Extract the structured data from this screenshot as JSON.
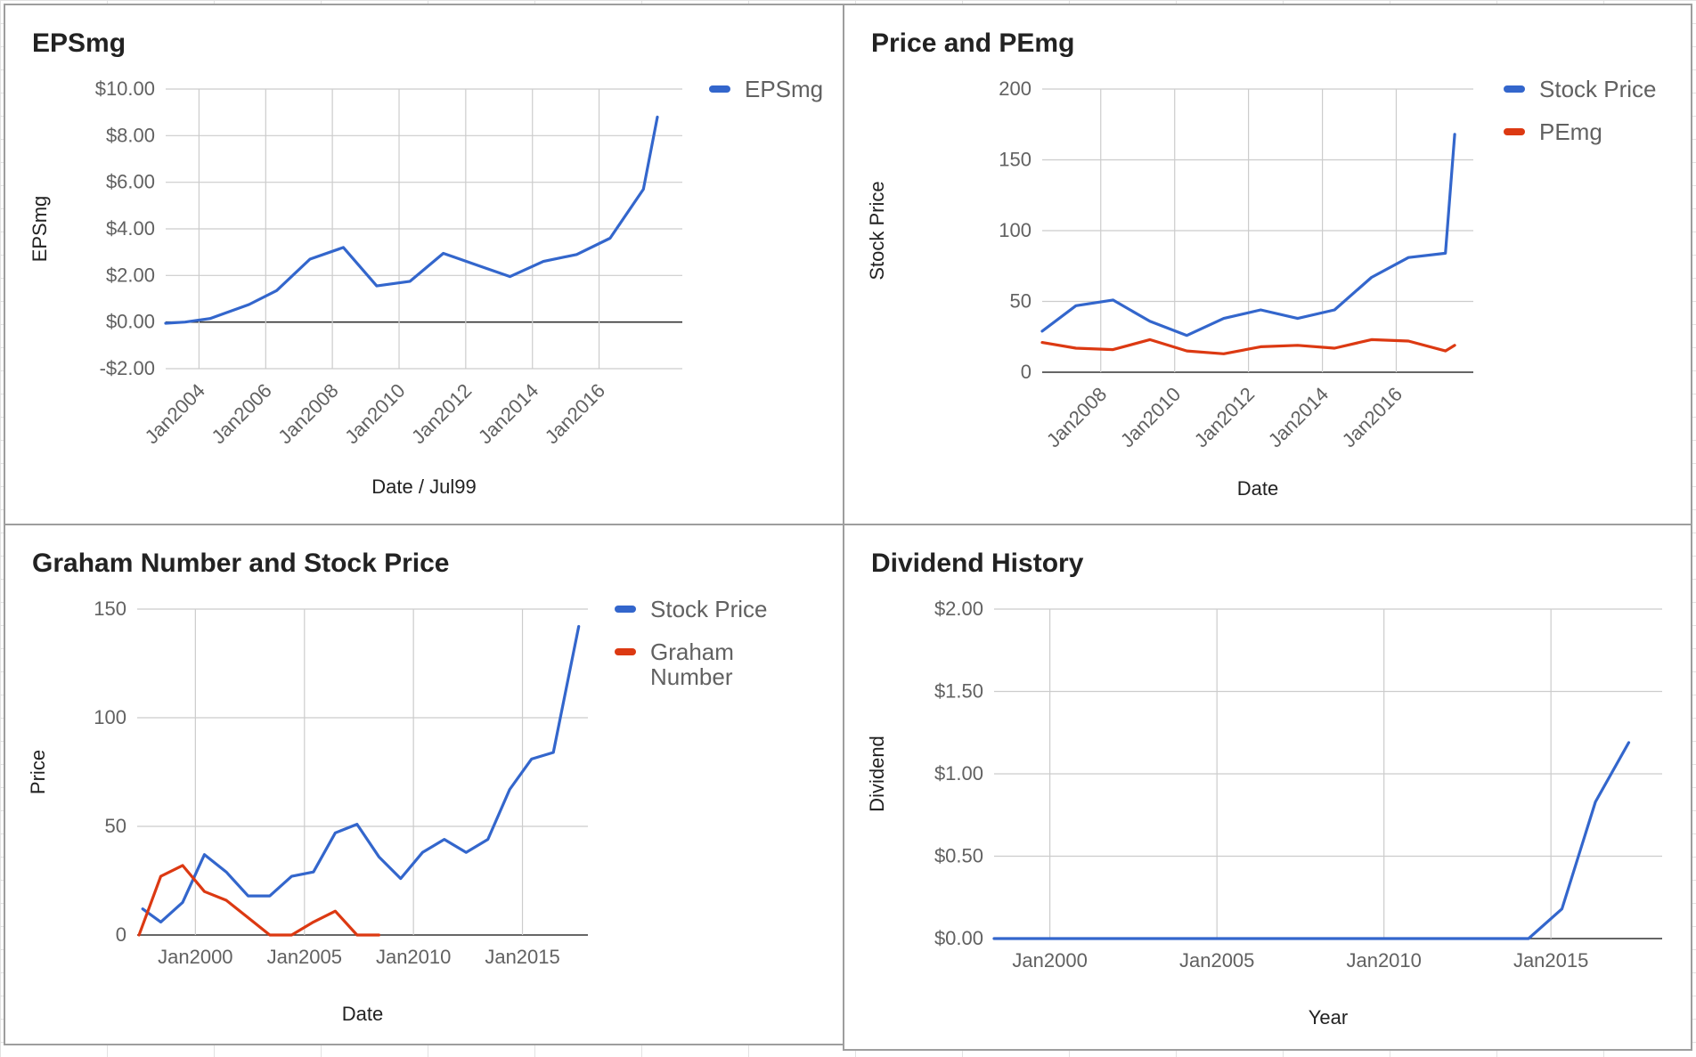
{
  "colors": {
    "blue": "#3366cc",
    "red": "#dc3912",
    "grid": "#cccccc",
    "baseline": "#333333",
    "tick_text": "#616161",
    "label_text": "#222222"
  },
  "chart_data": [
    {
      "id": "epsmg",
      "type": "line",
      "title": "EPSmg",
      "xlabel": "Date / Jul99",
      "ylabel": "EPSmg",
      "x_type": "date",
      "xlim": [
        "2003-01-01",
        "2018-07-01"
      ],
      "ylim": [
        -2,
        10
      ],
      "yticks": [
        -2,
        0,
        2,
        4,
        6,
        8,
        10
      ],
      "ytick_labels": [
        "-$2.00",
        "$0.00",
        "$2.00",
        "$4.00",
        "$6.00",
        "$8.00",
        "$10.00"
      ],
      "xticks": [
        "2004-01-01",
        "2006-01-01",
        "2008-01-01",
        "2010-01-01",
        "2012-01-01",
        "2014-01-01",
        "2016-01-01"
      ],
      "xtick_labels": [
        "Jan2004",
        "Jan2006",
        "Jan2008",
        "Jan2010",
        "Jan2012",
        "Jan2014",
        "Jan2016"
      ],
      "xtick_rotate": true,
      "grid": true,
      "legend": "right",
      "series": [
        {
          "name": "EPSmg",
          "color": "#3366cc",
          "points": [
            [
              "2003-01-01",
              -0.05
            ],
            [
              "2003-08-01",
              0.0
            ],
            [
              "2004-05-01",
              0.15
            ],
            [
              "2005-07-01",
              0.75
            ],
            [
              "2006-05-01",
              1.35
            ],
            [
              "2007-05-01",
              2.7
            ],
            [
              "2008-05-01",
              3.2
            ],
            [
              "2009-05-01",
              1.55
            ],
            [
              "2010-05-01",
              1.75
            ],
            [
              "2011-05-01",
              2.95
            ],
            [
              "2012-05-01",
              2.45
            ],
            [
              "2013-05-01",
              1.95
            ],
            [
              "2014-05-01",
              2.6
            ],
            [
              "2015-05-01",
              2.9
            ],
            [
              "2016-05-01",
              3.6
            ],
            [
              "2017-05-01",
              5.7
            ],
            [
              "2017-10-01",
              8.8
            ]
          ]
        }
      ]
    },
    {
      "id": "price-pemg",
      "type": "line",
      "title": "Price and PEmg",
      "xlabel": "Date",
      "ylabel": "Stock Price",
      "x_type": "date",
      "xlim": [
        "2006-06-01",
        "2018-02-01"
      ],
      "ylim": [
        0,
        200
      ],
      "yticks": [
        0,
        50,
        100,
        150,
        200
      ],
      "ytick_labels": [
        "0",
        "50",
        "100",
        "150",
        "200"
      ],
      "xticks": [
        "2008-01-01",
        "2010-01-01",
        "2012-01-01",
        "2014-01-01",
        "2016-01-01"
      ],
      "xtick_labels": [
        "Jan2008",
        "Jan2010",
        "Jan2012",
        "Jan2014",
        "Jan2016"
      ],
      "xtick_rotate": true,
      "grid": true,
      "legend": "right",
      "series": [
        {
          "name": "Stock Price",
          "color": "#3366cc",
          "points": [
            [
              "2006-06-01",
              29
            ],
            [
              "2007-05-01",
              47
            ],
            [
              "2008-05-01",
              51
            ],
            [
              "2009-05-01",
              36
            ],
            [
              "2010-05-01",
              26
            ],
            [
              "2011-05-01",
              38
            ],
            [
              "2012-05-01",
              44
            ],
            [
              "2013-05-01",
              38
            ],
            [
              "2014-05-01",
              44
            ],
            [
              "2015-05-01",
              67
            ],
            [
              "2016-05-01",
              81
            ],
            [
              "2017-05-01",
              84
            ],
            [
              "2017-08-01",
              168
            ]
          ]
        },
        {
          "name": "PEmg",
          "color": "#dc3912",
          "points": [
            [
              "2006-06-01",
              21
            ],
            [
              "2007-05-01",
              17
            ],
            [
              "2008-05-01",
              16
            ],
            [
              "2009-05-01",
              23
            ],
            [
              "2010-05-01",
              15
            ],
            [
              "2011-05-01",
              13
            ],
            [
              "2012-05-01",
              18
            ],
            [
              "2013-05-01",
              19
            ],
            [
              "2014-05-01",
              17
            ],
            [
              "2015-05-01",
              23
            ],
            [
              "2016-05-01",
              22
            ],
            [
              "2017-05-01",
              15
            ],
            [
              "2017-08-01",
              19
            ]
          ]
        }
      ]
    },
    {
      "id": "graham",
      "type": "line",
      "title": "Graham Number and Stock Price",
      "xlabel": "Date",
      "ylabel": "Price",
      "x_type": "date",
      "xlim": [
        "1997-05-01",
        "2018-01-01"
      ],
      "ylim": [
        0,
        150
      ],
      "yticks": [
        0,
        50,
        100,
        150
      ],
      "ytick_labels": [
        "0",
        "50",
        "100",
        "150"
      ],
      "xticks": [
        "2000-01-01",
        "2005-01-01",
        "2010-01-01",
        "2015-01-01"
      ],
      "xtick_labels": [
        "Jan2000",
        "Jan2005",
        "Jan2010",
        "Jan2015"
      ],
      "xtick_rotate": false,
      "grid": true,
      "legend": "right",
      "series": [
        {
          "name": "Stock Price",
          "color": "#3366cc",
          "points": [
            [
              "1997-08-01",
              12
            ],
            [
              "1998-06-01",
              6
            ],
            [
              "1999-06-01",
              15
            ],
            [
              "2000-06-01",
              37
            ],
            [
              "2001-06-01",
              29
            ],
            [
              "2002-06-01",
              18
            ],
            [
              "2003-06-01",
              18
            ],
            [
              "2004-06-01",
              27
            ],
            [
              "2005-06-01",
              29
            ],
            [
              "2006-06-01",
              47
            ],
            [
              "2007-06-01",
              51
            ],
            [
              "2008-06-01",
              36
            ],
            [
              "2009-06-01",
              26
            ],
            [
              "2010-06-01",
              38
            ],
            [
              "2011-06-01",
              44
            ],
            [
              "2012-06-01",
              38
            ],
            [
              "2013-06-01",
              44
            ],
            [
              "2014-06-01",
              67
            ],
            [
              "2015-06-01",
              81
            ],
            [
              "2016-06-01",
              84
            ],
            [
              "2017-08-01",
              142
            ]
          ]
        },
        {
          "name": "Graham Number",
          "color": "#dc3912",
          "points": [
            [
              "1997-06-01",
              0
            ],
            [
              "1998-06-01",
              27
            ],
            [
              "1999-06-01",
              32
            ],
            [
              "2000-06-01",
              20
            ],
            [
              "2001-06-01",
              16
            ],
            [
              "2002-06-01",
              8
            ],
            [
              "2003-06-01",
              0
            ],
            [
              "2004-06-01",
              0
            ],
            [
              "2005-06-01",
              6
            ],
            [
              "2006-06-01",
              11
            ],
            [
              "2007-06-01",
              0
            ],
            [
              "2008-06-01",
              0
            ]
          ]
        }
      ]
    },
    {
      "id": "dividend",
      "type": "line",
      "title": "Dividend History",
      "xlabel": "Year",
      "ylabel": "Dividend",
      "x_type": "date",
      "xlim": [
        "1998-05-01",
        "2018-05-01"
      ],
      "ylim": [
        0,
        2
      ],
      "yticks": [
        0,
        0.5,
        1,
        1.5,
        2
      ],
      "ytick_labels": [
        "$0.00",
        "$0.50",
        "$1.00",
        "$1.50",
        "$2.00"
      ],
      "xticks": [
        "2000-01-01",
        "2005-01-01",
        "2010-01-01",
        "2015-01-01"
      ],
      "xtick_labels": [
        "Jan2000",
        "Jan2005",
        "Jan2010",
        "Jan2015"
      ],
      "xtick_rotate": false,
      "grid": true,
      "legend": "none",
      "series": [
        {
          "name": "",
          "color": "#3366cc",
          "points": [
            [
              "1998-05-01",
              0
            ],
            [
              "2014-05-01",
              0
            ],
            [
              "2015-05-01",
              0.18
            ],
            [
              "2016-05-01",
              0.83
            ],
            [
              "2017-05-01",
              1.19
            ]
          ]
        }
      ]
    }
  ]
}
